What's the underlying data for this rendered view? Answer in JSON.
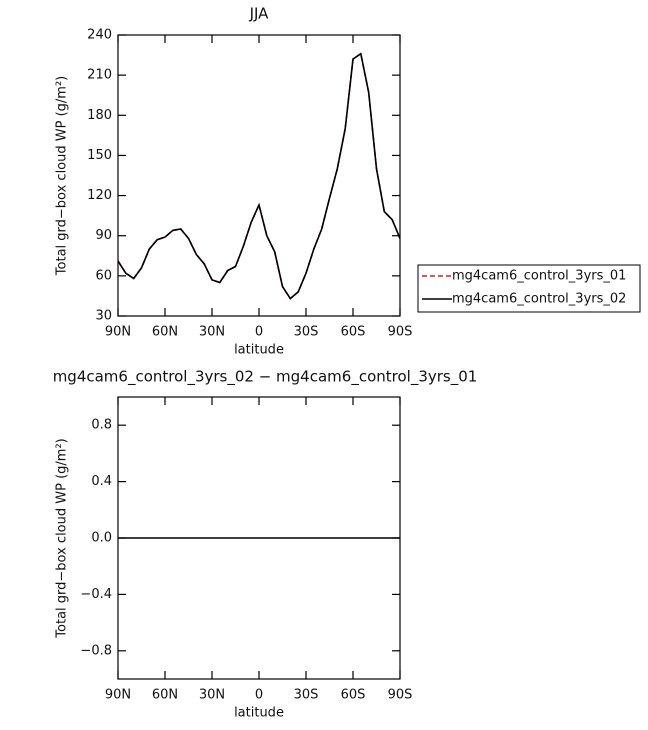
{
  "chart_data": [
    {
      "type": "line",
      "title": "JJA",
      "x_label": "latitude",
      "y_label": "Total grd−box cloud WP (g/m²)",
      "x": [
        90,
        85,
        80,
        75,
        70,
        65,
        60,
        55,
        50,
        45,
        40,
        35,
        30,
        25,
        20,
        15,
        10,
        5,
        0,
        -5,
        -10,
        -15,
        -20,
        -25,
        -30,
        -35,
        -40,
        -45,
        -50,
        -55,
        -60,
        -65,
        -70,
        -75,
        -80,
        -85,
        -90
      ],
      "xlim": [
        90,
        -90
      ],
      "xticks": [
        {
          "value": 90,
          "label": "90N"
        },
        {
          "value": 60,
          "label": "60N"
        },
        {
          "value": 30,
          "label": "30N"
        },
        0,
        {
          "value": -30,
          "label": "30S"
        },
        {
          "value": -60,
          "label": "60S"
        },
        {
          "value": -90,
          "label": "90S"
        }
      ],
      "ylim": [
        30,
        240
      ],
      "yticks": [
        30,
        60,
        90,
        120,
        150,
        180,
        210,
        240
      ],
      "series": [
        {
          "name": "mg4cam6_control_3yrs_01",
          "color": "#e41a1c",
          "dash": true,
          "values": [
            71,
            62,
            58,
            66,
            80,
            87,
            89,
            94,
            95,
            88,
            76,
            69,
            57,
            55,
            64,
            67,
            82,
            100,
            113,
            90,
            78,
            52,
            43,
            48,
            62,
            80,
            95,
            118,
            140,
            170,
            222,
            226,
            197,
            140,
            108,
            102,
            88
          ]
        },
        {
          "name": "mg4cam6_control_3yrs_02",
          "color": "#000000",
          "dash": false,
          "values": [
            71,
            62,
            58,
            66,
            80,
            87,
            89,
            94,
            95,
            88,
            76,
            69,
            57,
            55,
            64,
            67,
            82,
            100,
            113,
            90,
            78,
            52,
            43,
            48,
            62,
            80,
            95,
            118,
            140,
            170,
            222,
            226,
            197,
            140,
            108,
            102,
            88
          ]
        }
      ]
    },
    {
      "type": "line",
      "title": "mg4cam6_control_3yrs_02 − mg4cam6_control_3yrs_01",
      "x_label": "latitude",
      "y_label": "Total grd−box cloud WP (g/m²)",
      "x": [
        90,
        -90
      ],
      "xlim": [
        90,
        -90
      ],
      "xticks": [
        {
          "value": 90,
          "label": "90N"
        },
        {
          "value": 60,
          "label": "60N"
        },
        {
          "value": 30,
          "label": "30N"
        },
        0,
        {
          "value": -30,
          "label": "30S"
        },
        {
          "value": -60,
          "label": "60S"
        },
        {
          "value": -90,
          "label": "90S"
        }
      ],
      "ylim": [
        -1,
        1
      ],
      "yticks": [
        {
          "value": -0.8,
          "label": "−0.8"
        },
        {
          "value": -0.4,
          "label": "−0.4"
        },
        {
          "value": 0,
          "label": "0.0"
        },
        0.4,
        0.8
      ],
      "series": [
        {
          "color": "#000000",
          "dash": false,
          "values": [
            0,
            0
          ]
        }
      ]
    }
  ]
}
